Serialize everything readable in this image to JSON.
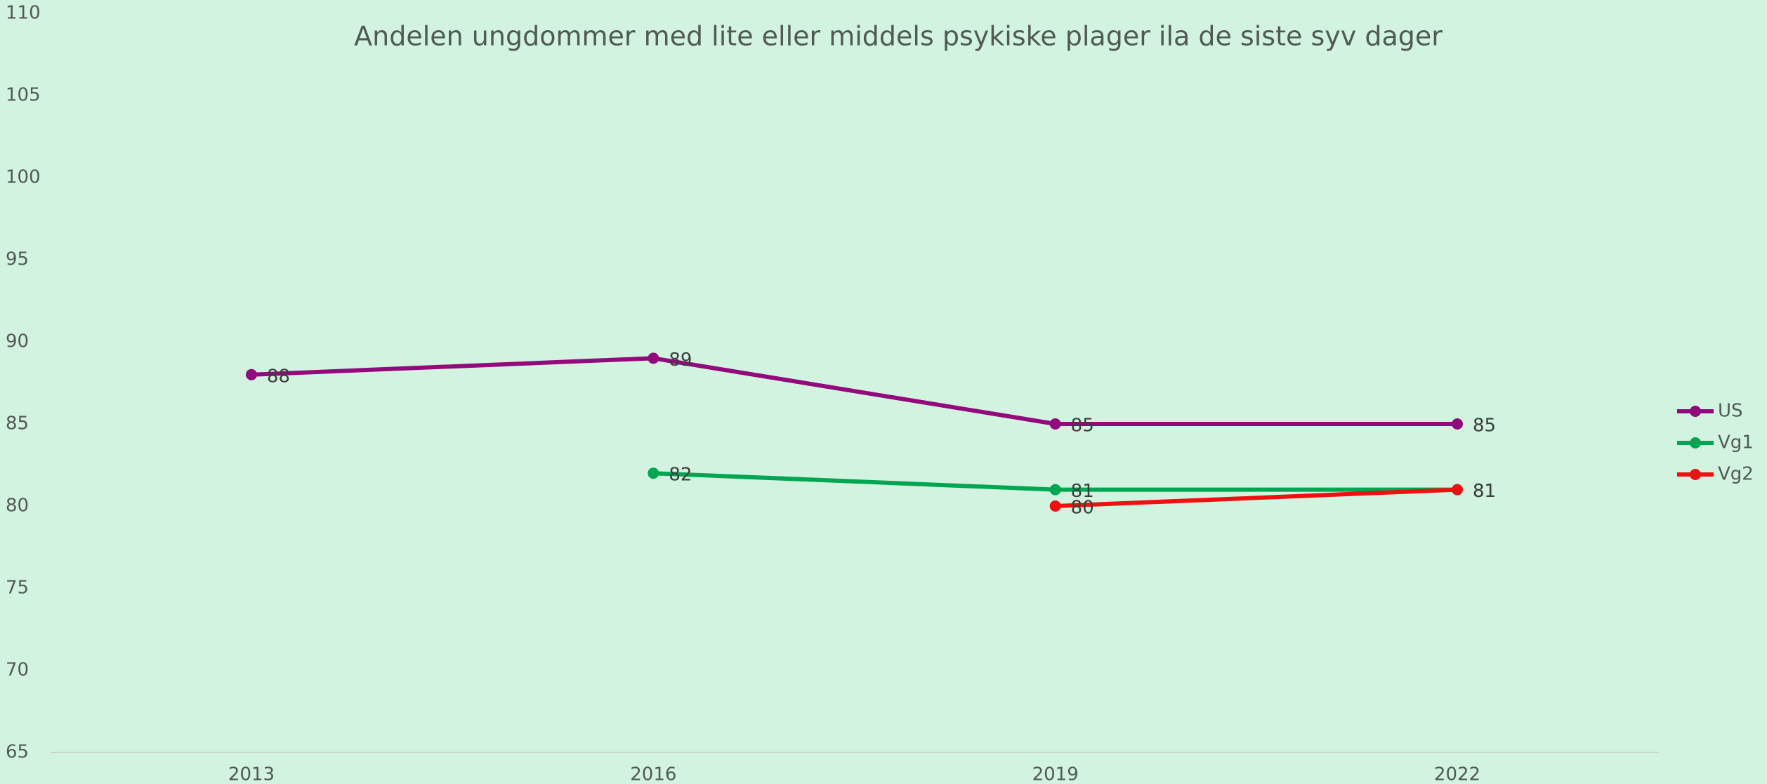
{
  "chart_data": {
    "type": "line",
    "title": "Andelen ungdommer med lite eller middels psykiske plager ila de siste syv dager",
    "categories": [
      "2013",
      "2016",
      "2019",
      "2022"
    ],
    "series": [
      {
        "name": "US",
        "color": "#920a7c",
        "values": [
          88,
          89,
          85,
          85
        ]
      },
      {
        "name": "Vg1",
        "color": "#00a651",
        "values": [
          null,
          82,
          81,
          81
        ]
      },
      {
        "name": "Vg2",
        "color": "#f01010",
        "values": [
          null,
          null,
          80,
          81
        ]
      }
    ],
    "ylim": [
      65,
      110
    ],
    "yticks": [
      65,
      70,
      75,
      80,
      85,
      90,
      95,
      100,
      105,
      110
    ],
    "grid": false,
    "legend": "right"
  }
}
